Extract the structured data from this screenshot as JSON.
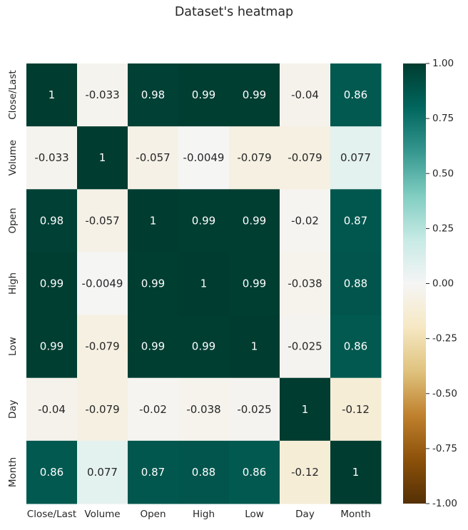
{
  "chart_data": {
    "type": "heatmap",
    "title": "Dataset's heatmap",
    "x_labels": [
      "Close/Last",
      "Volume",
      "Open",
      "High",
      "Low",
      "Day",
      "Month"
    ],
    "y_labels": [
      "Close/Last",
      "Volume",
      "Open",
      "High",
      "Low",
      "Day",
      "Month"
    ],
    "values": [
      [
        1,
        -0.033,
        0.98,
        0.99,
        0.99,
        -0.04,
        0.86
      ],
      [
        -0.033,
        1,
        -0.057,
        -0.0049,
        -0.079,
        -0.079,
        0.077
      ],
      [
        0.98,
        -0.057,
        1,
        0.99,
        0.99,
        -0.02,
        0.87
      ],
      [
        0.99,
        -0.0049,
        0.99,
        1,
        0.99,
        -0.038,
        0.88
      ],
      [
        0.99,
        -0.079,
        0.99,
        0.99,
        1,
        -0.025,
        0.86
      ],
      [
        -0.04,
        -0.079,
        -0.02,
        -0.038,
        -0.025,
        1,
        -0.12
      ],
      [
        0.86,
        0.077,
        0.87,
        0.88,
        0.86,
        -0.12,
        1
      ]
    ],
    "vmin": -1,
    "vmax": 1,
    "colormap": "BrBG",
    "annotated": true,
    "colorbar": {
      "ticks": [
        "1.00",
        "0.75",
        "0.50",
        "0.25",
        "0.00",
        "-0.25",
        "-0.50",
        "-0.75",
        "-1.00"
      ],
      "tick_values": [
        1,
        0.75,
        0.5,
        0.25,
        0,
        -0.25,
        -0.5,
        -0.75,
        -1
      ]
    }
  }
}
